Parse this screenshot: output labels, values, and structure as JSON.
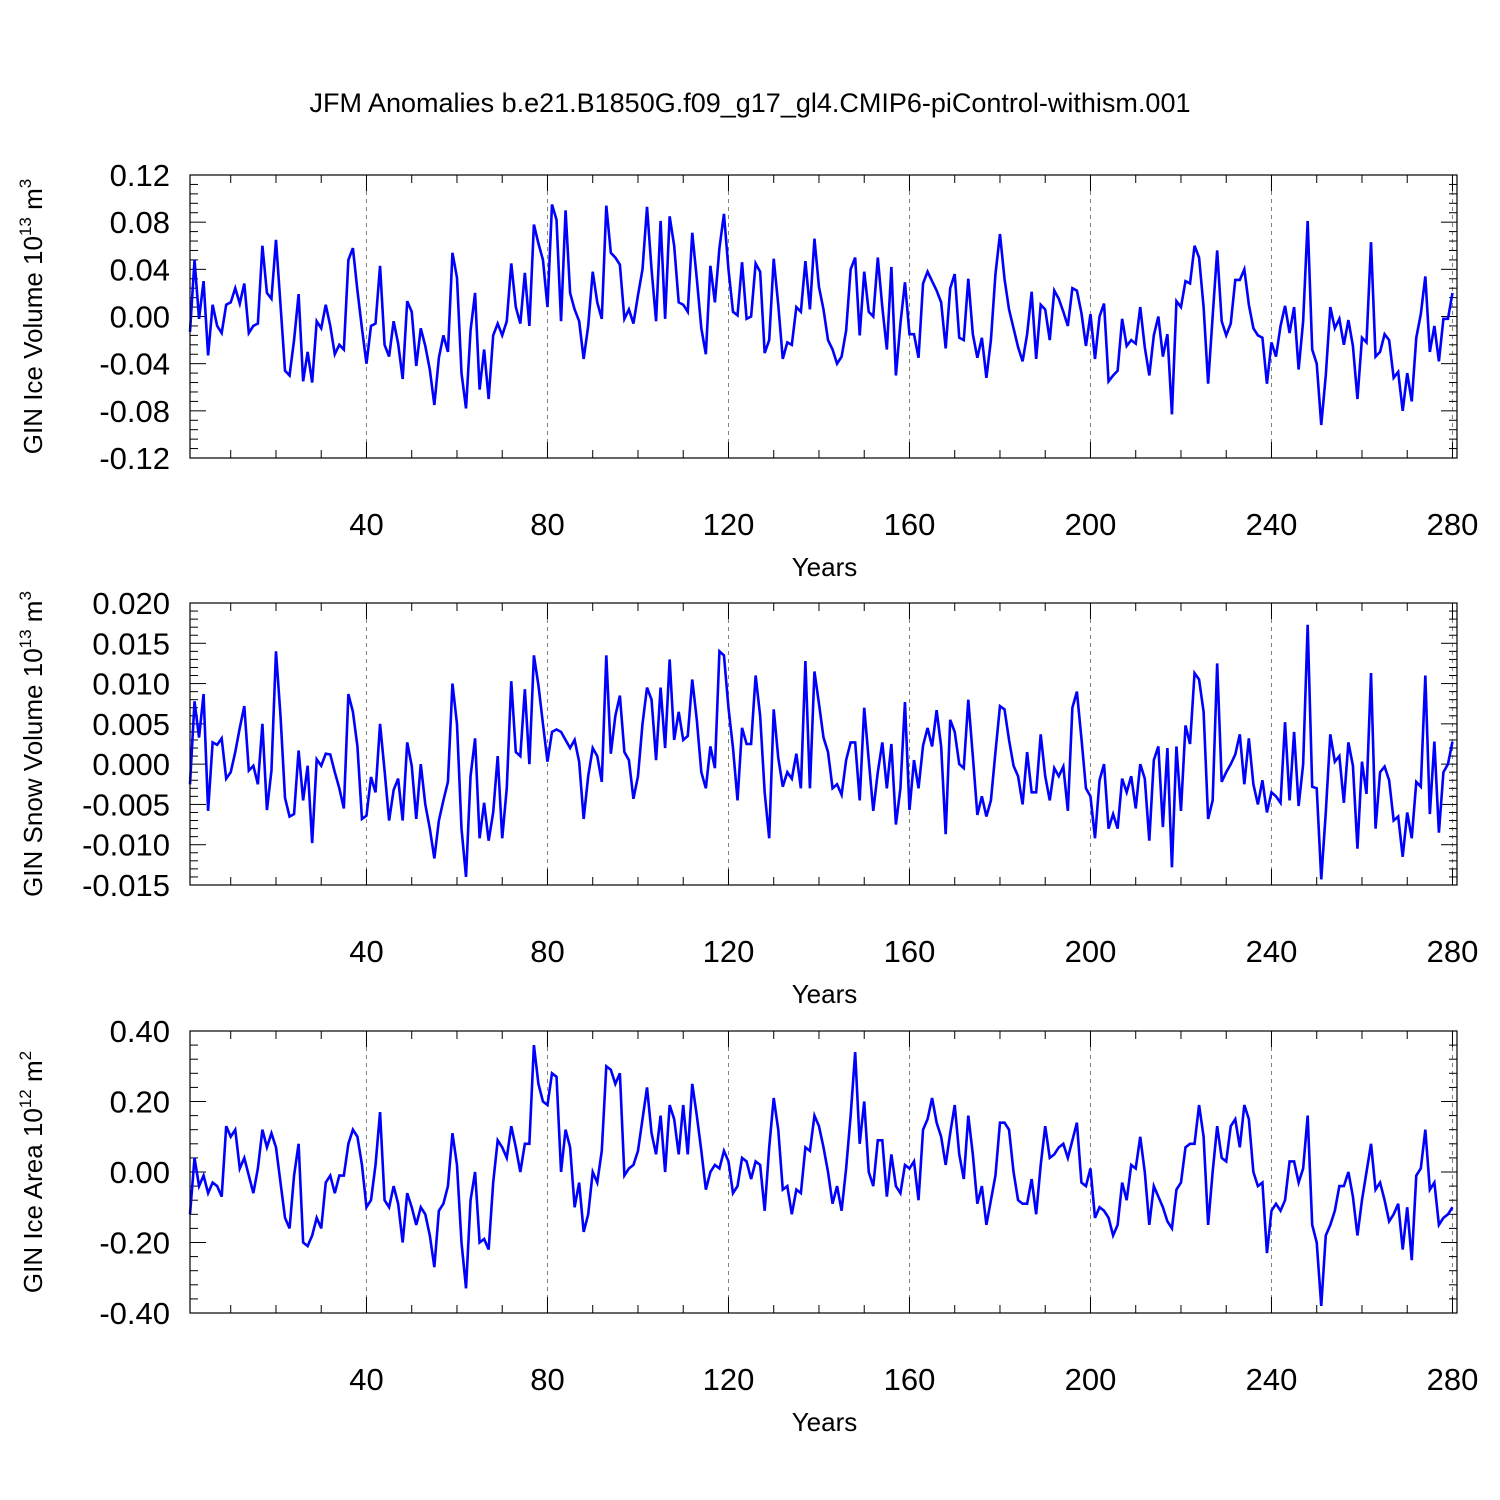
{
  "title": "JFM Anomalies b.e21.B1850G.f09_g17_gl4.CMIP6-piControl-withism.001",
  "colors": {
    "line": "#0000ff",
    "axis": "#000000",
    "grid": "#808080"
  },
  "chart_data": [
    {
      "type": "line",
      "ylabel": {
        "main": "GIN Ice Volume 10",
        "exp": "13",
        "unit": " m",
        "unit_exp": "3"
      },
      "xlabel": "Years",
      "xlim": [
        1,
        281
      ],
      "ylim": [
        -0.12,
        0.12
      ],
      "xticks": [
        40,
        80,
        120,
        160,
        200,
        240,
        280
      ],
      "xtick_labels": [
        "40",
        "80",
        "120",
        "160",
        "200",
        "240",
        "280"
      ],
      "yticks": [
        -0.12,
        -0.08,
        -0.04,
        0.0,
        0.04,
        0.08,
        0.12
      ],
      "ytick_labels": [
        "-0.12",
        "-0.08",
        "-0.04",
        "0.00",
        "0.04",
        "0.08",
        "0.12"
      ],
      "grid": "vertical dashed at major x ticks",
      "series": [
        {
          "x_start": 1,
          "x_step": 1,
          "values": [
            -0.013,
            0.048,
            -0.002,
            0.03,
            -0.033,
            0.01,
            -0.008,
            -0.014,
            0.01,
            0.012,
            0.024,
            0.011,
            0.028,
            -0.014,
            -0.008,
            -0.006,
            0.06,
            0.02,
            0.015,
            0.065,
            0.01,
            -0.046,
            -0.05,
            -0.02,
            0.019,
            -0.055,
            -0.03,
            -0.056,
            -0.004,
            -0.01,
            0.01,
            -0.008,
            -0.032,
            -0.024,
            -0.028,
            0.048,
            0.058,
            0.022,
            -0.01,
            -0.04,
            -0.008,
            -0.006,
            0.043,
            -0.024,
            -0.034,
            -0.004,
            -0.023,
            -0.053,
            0.013,
            0.004,
            -0.042,
            -0.01,
            -0.025,
            -0.045,
            -0.075,
            -0.035,
            -0.016,
            -0.03,
            0.054,
            0.033,
            -0.048,
            -0.078,
            -0.012,
            0.02,
            -0.062,
            -0.028,
            -0.07,
            -0.016,
            -0.006,
            -0.016,
            -0.004,
            0.045,
            0.008,
            -0.006,
            0.037,
            -0.008,
            0.078,
            0.062,
            0.048,
            0.008,
            0.095,
            0.082,
            -0.004,
            0.09,
            0.02,
            0.006,
            -0.004,
            -0.036,
            -0.008,
            0.038,
            0.012,
            -0.002,
            0.094,
            0.054,
            0.05,
            0.044,
            -0.002,
            0.006,
            -0.006,
            0.018,
            0.04,
            0.093,
            0.04,
            -0.004,
            0.081,
            -0.002,
            0.085,
            0.06,
            0.012,
            0.01,
            0.004,
            0.071,
            0.032,
            -0.01,
            -0.032,
            0.043,
            0.012,
            0.058,
            0.087,
            0.04,
            0.004,
            0.001,
            0.046,
            -0.002,
            0.0,
            0.045,
            0.038,
            -0.031,
            -0.02,
            0.049,
            0.01,
            -0.036,
            -0.022,
            -0.024,
            0.008,
            0.004,
            0.047,
            0.006,
            0.066,
            0.025,
            0.006,
            -0.02,
            -0.028,
            -0.04,
            -0.034,
            -0.012,
            0.04,
            0.05,
            -0.016,
            0.038,
            0.004,
            0.0,
            0.05,
            0.008,
            -0.028,
            0.042,
            -0.05,
            -0.006,
            0.029,
            -0.015,
            -0.015,
            -0.035,
            0.028,
            0.038,
            0.03,
            0.022,
            0.012,
            -0.027,
            0.024,
            0.036,
            -0.018,
            -0.02,
            0.032,
            -0.015,
            -0.035,
            -0.018,
            -0.052,
            -0.02,
            0.036,
            0.07,
            0.032,
            0.006,
            -0.01,
            -0.026,
            -0.038,
            -0.015,
            0.021,
            -0.036,
            0.01,
            0.006,
            -0.02,
            0.022,
            0.015,
            0.004,
            -0.008,
            0.024,
            0.022,
            0.003,
            -0.025,
            0.002,
            -0.036,
            0.0,
            0.011,
            -0.055,
            -0.05,
            -0.046,
            -0.002,
            -0.025,
            -0.02,
            -0.023,
            0.008,
            -0.026,
            -0.05,
            -0.016,
            0.0,
            -0.034,
            -0.015,
            -0.083,
            0.013,
            0.008,
            0.03,
            0.028,
            0.06,
            0.05,
            0.008,
            -0.057,
            0.0,
            0.056,
            -0.004,
            -0.016,
            -0.006,
            0.031,
            0.031,
            0.04,
            0.01,
            -0.01,
            -0.016,
            -0.018,
            -0.057,
            -0.022,
            -0.034,
            -0.008,
            0.009,
            -0.014,
            0.008,
            -0.045,
            -0.004,
            0.081,
            -0.028,
            -0.04,
            -0.092,
            -0.05,
            0.008,
            -0.01,
            -0.002,
            -0.024,
            -0.003,
            -0.025,
            -0.07,
            -0.018,
            -0.022,
            0.063,
            -0.034,
            -0.03,
            -0.015,
            -0.02,
            -0.052,
            -0.047,
            -0.08,
            -0.048,
            -0.072,
            -0.018,
            0.002,
            0.034,
            -0.03,
            -0.008,
            -0.038,
            -0.002,
            -0.002,
            0.02
          ]
        }
      ]
    },
    {
      "type": "line",
      "ylabel": {
        "main": "GIN Snow Volume 10",
        "exp": "13",
        "unit": " m",
        "unit_exp": "3"
      },
      "xlabel": "Years",
      "xlim": [
        1,
        281
      ],
      "ylim": [
        -0.015,
        0.02
      ],
      "xticks": [
        40,
        80,
        120,
        160,
        200,
        240,
        280
      ],
      "xtick_labels": [
        "40",
        "80",
        "120",
        "160",
        "200",
        "240",
        "280"
      ],
      "yticks": [
        -0.015,
        -0.01,
        -0.005,
        0.0,
        0.005,
        0.01,
        0.015,
        0.02
      ],
      "ytick_labels": [
        "-0.015",
        "-0.010",
        "-0.005",
        "0.000",
        "0.005",
        "0.010",
        "0.015",
        "0.020"
      ],
      "grid": "vertical dashed at major x ticks",
      "series": [
        {
          "x_start": 1,
          "x_step": 1,
          "values": [
            -0.0025,
            0.0078,
            0.0033,
            0.0087,
            -0.0058,
            0.0027,
            0.0024,
            0.0032,
            -0.0018,
            -0.001,
            0.0015,
            0.0045,
            0.0072,
            -0.0008,
            -0.0002,
            -0.0025,
            0.005,
            -0.0057,
            -0.0008,
            0.014,
            0.006,
            -0.0042,
            -0.0065,
            -0.0062,
            0.0017,
            -0.0045,
            -0.0002,
            -0.0098,
            0.0006,
            -0.0002,
            0.0013,
            0.0012,
            -0.001,
            -0.003,
            -0.0055,
            0.0087,
            0.0065,
            0.0022,
            -0.0068,
            -0.0064,
            -0.0016,
            -0.0035,
            0.005,
            -0.0008,
            -0.007,
            -0.0032,
            -0.0018,
            -0.007,
            0.0027,
            -0.0002,
            -0.0068,
            0.0,
            -0.005,
            -0.008,
            -0.0117,
            -0.007,
            -0.0045,
            -0.0022,
            0.01,
            0.005,
            -0.008,
            -0.014,
            -0.0015,
            0.0032,
            -0.0092,
            -0.0048,
            -0.0095,
            -0.006,
            0.001,
            -0.0092,
            -0.003,
            0.0103,
            0.0015,
            0.001,
            0.0093,
            0.0,
            0.0135,
            0.0098,
            0.005,
            0.0003,
            0.004,
            0.0043,
            0.004,
            0.003,
            0.002,
            0.003,
            0.0003,
            -0.0068,
            -0.0015,
            0.002,
            0.001,
            -0.0022,
            0.0135,
            0.0013,
            0.006,
            0.0085,
            0.0015,
            0.0005,
            -0.0043,
            -0.0015,
            0.005,
            0.0095,
            0.008,
            0.0005,
            0.0095,
            0.002,
            0.013,
            0.003,
            0.0065,
            0.003,
            0.0035,
            0.0105,
            0.0055,
            -0.001,
            -0.003,
            0.0022,
            -0.0005,
            0.014,
            0.0135,
            0.007,
            0.002,
            -0.0045,
            0.0045,
            0.0025,
            0.0025,
            0.011,
            0.006,
            -0.0035,
            -0.0092,
            0.0068,
            0.0008,
            -0.0028,
            -0.001,
            -0.0018,
            0.0013,
            -0.003,
            0.0128,
            -0.003,
            0.0115,
            0.0075,
            0.0033,
            0.0015,
            -0.003,
            -0.0025,
            -0.0038,
            0.0005,
            0.0027,
            0.0027,
            -0.0045,
            0.007,
            0.0005,
            -0.0058,
            -0.001,
            0.0027,
            -0.003,
            0.0025,
            -0.0075,
            -0.003,
            0.0077,
            -0.0057,
            0.0005,
            -0.003,
            0.0023,
            0.0045,
            0.0022,
            0.0067,
            0.0022,
            -0.0087,
            0.0055,
            0.004,
            0.0,
            -0.0005,
            0.008,
            0.001,
            -0.0063,
            -0.004,
            -0.0065,
            -0.0045,
            0.0015,
            0.0072,
            0.0068,
            0.003,
            -0.0002,
            -0.0015,
            -0.005,
            0.0015,
            -0.0035,
            -0.0035,
            0.0037,
            -0.0015,
            -0.0045,
            -0.0005,
            -0.0015,
            -0.0003,
            -0.0058,
            0.007,
            0.009,
            0.0032,
            -0.003,
            -0.004,
            -0.0092,
            -0.002,
            0.0,
            -0.008,
            -0.0062,
            -0.008,
            -0.0018,
            -0.0035,
            -0.0015,
            -0.0055,
            0.0,
            -0.0018,
            -0.0095,
            0.0005,
            0.0022,
            -0.0078,
            0.002,
            -0.0128,
            0.0022,
            -0.0058,
            0.0048,
            0.0025,
            0.0113,
            0.0105,
            0.0065,
            -0.0068,
            -0.0045,
            0.0125,
            -0.0022,
            -0.001,
            0.0,
            0.0012,
            0.0037,
            -0.0025,
            0.0032,
            -0.0025,
            -0.005,
            -0.002,
            -0.006,
            -0.0035,
            -0.004,
            -0.0048,
            0.0052,
            -0.0045,
            0.004,
            -0.0052,
            0.0,
            0.0173,
            -0.0028,
            -0.003,
            -0.0143,
            -0.006,
            0.0037,
            0.0003,
            0.001,
            -0.0048,
            0.0027,
            -0.0002,
            -0.0105,
            0.0003,
            -0.0037,
            0.0113,
            -0.008,
            -0.001,
            -0.0003,
            -0.002,
            -0.007,
            -0.0065,
            -0.0115,
            -0.006,
            -0.0092,
            -0.0022,
            -0.0028,
            0.011,
            -0.0062,
            0.0028,
            -0.0085,
            -0.001,
            0.0,
            0.0028
          ]
        }
      ]
    },
    {
      "type": "line",
      "ylabel": {
        "main": "GIN Ice Area 10",
        "exp": "12",
        "unit": " m",
        "unit_exp": "2"
      },
      "xlabel": "Years",
      "xlim": [
        1,
        281
      ],
      "ylim": [
        -0.4,
        0.4
      ],
      "xticks": [
        40,
        80,
        120,
        160,
        200,
        240,
        280
      ],
      "xtick_labels": [
        "40",
        "80",
        "120",
        "160",
        "200",
        "240",
        "280"
      ],
      "yticks": [
        -0.4,
        -0.2,
        0.0,
        0.2,
        0.4
      ],
      "ytick_labels": [
        "-0.40",
        "-0.20",
        "0.00",
        "0.20",
        "0.40"
      ],
      "grid": "vertical dashed at major x ticks",
      "series": [
        {
          "x_start": 1,
          "x_step": 1,
          "values": [
            -0.12,
            0.04,
            -0.04,
            -0.01,
            -0.06,
            -0.03,
            -0.04,
            -0.07,
            0.13,
            0.1,
            0.12,
            0.01,
            0.04,
            -0.01,
            -0.06,
            0.01,
            0.12,
            0.07,
            0.11,
            0.07,
            -0.03,
            -0.13,
            -0.16,
            -0.01,
            0.08,
            -0.2,
            -0.21,
            -0.18,
            -0.13,
            -0.16,
            -0.03,
            -0.01,
            -0.06,
            -0.01,
            -0.01,
            0.08,
            0.12,
            0.1,
            0.02,
            -0.1,
            -0.08,
            0.02,
            0.17,
            -0.08,
            -0.1,
            -0.04,
            -0.09,
            -0.2,
            -0.06,
            -0.1,
            -0.15,
            -0.1,
            -0.12,
            -0.18,
            -0.27,
            -0.11,
            -0.09,
            -0.04,
            0.11,
            0.02,
            -0.2,
            -0.33,
            -0.08,
            0.0,
            -0.2,
            -0.19,
            -0.22,
            -0.03,
            0.09,
            0.07,
            0.04,
            0.13,
            0.07,
            0.0,
            0.08,
            0.08,
            0.36,
            0.25,
            0.2,
            0.19,
            0.28,
            0.27,
            0.0,
            0.12,
            0.07,
            -0.1,
            -0.03,
            -0.17,
            -0.12,
            0.0,
            -0.03,
            0.06,
            0.3,
            0.29,
            0.25,
            0.28,
            -0.01,
            0.01,
            0.02,
            0.06,
            0.15,
            0.24,
            0.11,
            0.05,
            0.16,
            0.0,
            0.19,
            0.15,
            0.05,
            0.19,
            0.05,
            0.25,
            0.16,
            0.06,
            -0.05,
            0.0,
            0.02,
            0.01,
            0.06,
            0.03,
            -0.06,
            -0.04,
            0.04,
            0.03,
            -0.02,
            0.03,
            0.02,
            -0.11,
            0.07,
            0.21,
            0.12,
            -0.05,
            -0.04,
            -0.12,
            -0.05,
            -0.06,
            0.07,
            0.06,
            0.16,
            0.13,
            0.07,
            0.0,
            -0.09,
            -0.04,
            -0.11,
            0.01,
            0.16,
            0.34,
            0.08,
            0.2,
            0.0,
            -0.04,
            0.09,
            0.09,
            -0.07,
            0.05,
            -0.04,
            -0.06,
            0.02,
            0.01,
            0.03,
            -0.08,
            0.12,
            0.15,
            0.21,
            0.14,
            0.1,
            0.02,
            0.11,
            0.19,
            0.05,
            -0.02,
            0.16,
            0.05,
            -0.09,
            -0.04,
            -0.15,
            -0.08,
            -0.01,
            0.14,
            0.14,
            0.12,
            0.0,
            -0.08,
            -0.09,
            -0.09,
            -0.02,
            -0.12,
            0.02,
            0.13,
            0.04,
            0.05,
            0.07,
            0.08,
            0.04,
            0.09,
            0.14,
            -0.03,
            -0.04,
            0.01,
            -0.13,
            -0.1,
            -0.11,
            -0.13,
            -0.18,
            -0.15,
            -0.03,
            -0.08,
            0.02,
            0.01,
            0.1,
            0.0,
            -0.15,
            -0.04,
            -0.07,
            -0.1,
            -0.14,
            -0.16,
            -0.05,
            -0.03,
            0.07,
            0.08,
            0.08,
            0.19,
            0.1,
            -0.15,
            0.0,
            0.13,
            0.04,
            0.03,
            0.13,
            0.15,
            0.07,
            0.19,
            0.15,
            0.0,
            -0.04,
            -0.03,
            -0.23,
            -0.11,
            -0.09,
            -0.11,
            -0.08,
            0.03,
            0.03,
            -0.03,
            0.01,
            0.16,
            -0.15,
            -0.2,
            -0.38,
            -0.18,
            -0.15,
            -0.11,
            -0.04,
            -0.04,
            0.0,
            -0.07,
            -0.18,
            -0.08,
            0.0,
            0.08,
            -0.05,
            -0.03,
            -0.08,
            -0.14,
            -0.12,
            -0.09,
            -0.22,
            -0.1,
            -0.25,
            -0.01,
            0.01,
            0.12,
            -0.05,
            -0.03,
            -0.15,
            -0.13,
            -0.12,
            -0.1
          ]
        }
      ]
    }
  ]
}
